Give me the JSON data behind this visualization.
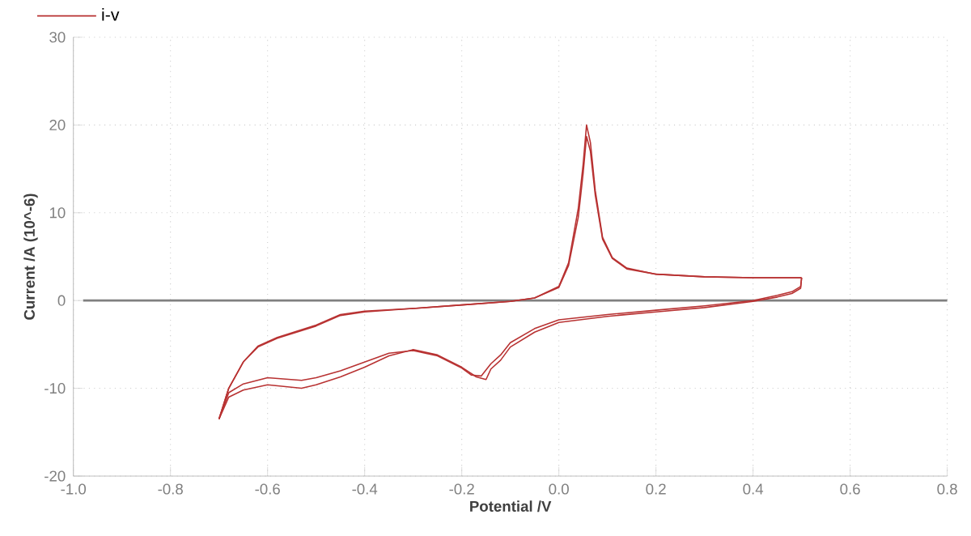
{
  "chart_data": {
    "type": "line",
    "xlabel": "Potential /V",
    "ylabel": "Current /A (10^-6)",
    "xlim": [
      -1.0,
      0.8
    ],
    "ylim": [
      -20,
      30
    ],
    "xticks": [
      {
        "value": -1.0,
        "label": "-1.0"
      },
      {
        "value": -0.8,
        "label": "-0.8"
      },
      {
        "value": -0.6,
        "label": "-0.6"
      },
      {
        "value": -0.4,
        "label": "-0.4"
      },
      {
        "value": -0.2,
        "label": "-0.2"
      },
      {
        "value": 0.0,
        "label": "0.0"
      },
      {
        "value": 0.2,
        "label": "0.2"
      },
      {
        "value": 0.4,
        "label": "0.4"
      },
      {
        "value": 0.6,
        "label": "0.6"
      },
      {
        "value": 0.8,
        "label": "0.8"
      }
    ],
    "yticks": [
      -20,
      -10,
      0,
      10,
      20,
      30
    ],
    "grid": true,
    "legend": "top left",
    "marker": "none",
    "line_style": "solid",
    "ref_lines": [
      {
        "axis": "y",
        "value": 0,
        "color": "#808080"
      }
    ],
    "series": [
      {
        "name": "i-v",
        "color": "#b83232",
        "x": [
          -0.7,
          -0.68,
          -0.65,
          -0.62,
          -0.58,
          -0.5,
          -0.45,
          -0.4,
          -0.3,
          -0.2,
          -0.1,
          -0.05,
          0.0,
          0.02,
          0.04,
          0.05,
          0.057,
          0.065,
          0.075,
          0.09,
          0.11,
          0.14,
          0.2,
          0.3,
          0.4,
          0.5
        ],
        "values": [
          -13.5,
          -10.0,
          -7.0,
          -5.3,
          -4.3,
          -2.9,
          -1.7,
          -1.3,
          -0.9,
          -0.5,
          -0.1,
          0.3,
          1.5,
          4.0,
          9.5,
          14.5,
          18.7,
          17.0,
          12.0,
          7.0,
          4.8,
          3.6,
          3.0,
          2.7,
          2.6,
          2.6
        ]
      },
      {
        "color": "#b83232",
        "x": [
          0.5,
          0.498,
          0.48,
          0.45,
          0.4,
          0.3,
          0.2,
          0.1,
          0.0,
          -0.05,
          -0.1,
          -0.12,
          -0.14,
          -0.16,
          -0.18,
          -0.2,
          -0.25,
          -0.3,
          -0.35,
          -0.4,
          -0.45,
          -0.5,
          -0.53,
          -0.6,
          -0.65,
          -0.68,
          -0.7
        ],
        "values": [
          2.6,
          1.6,
          1.0,
          0.6,
          0.0,
          -0.6,
          -1.1,
          -1.6,
          -2.2,
          -3.2,
          -4.8,
          -6.2,
          -7.2,
          -8.6,
          -8.5,
          -7.7,
          -6.3,
          -5.7,
          -6.0,
          -7.0,
          -8.0,
          -8.8,
          -9.1,
          -8.8,
          -9.5,
          -10.5,
          -13.5
        ]
      },
      {
        "color": "#b83232",
        "x": [
          -0.7,
          -0.68,
          -0.65,
          -0.62,
          -0.58,
          -0.5,
          -0.45,
          -0.4,
          -0.3,
          -0.2,
          -0.1,
          -0.05,
          0.0,
          0.02,
          0.04,
          0.05,
          0.057,
          0.065,
          0.075,
          0.09,
          0.11,
          0.14,
          0.2,
          0.3,
          0.4,
          0.5
        ],
        "values": [
          -13.5,
          -10.0,
          -7.0,
          -5.2,
          -4.2,
          -2.8,
          -1.6,
          -1.2,
          -0.9,
          -0.5,
          -0.1,
          0.3,
          1.6,
          4.3,
          10.5,
          15.5,
          20.0,
          18.0,
          12.5,
          7.2,
          4.9,
          3.7,
          3.0,
          2.7,
          2.6,
          2.6
        ]
      },
      {
        "color": "#b83232",
        "x": [
          0.5,
          0.498,
          0.48,
          0.45,
          0.4,
          0.3,
          0.2,
          0.1,
          0.0,
          -0.05,
          -0.1,
          -0.12,
          -0.14,
          -0.15,
          -0.17,
          -0.2,
          -0.25,
          -0.3,
          -0.35,
          -0.4,
          -0.45,
          -0.5,
          -0.53,
          -0.6,
          -0.65,
          -0.68,
          -0.7
        ],
        "values": [
          2.6,
          1.4,
          0.8,
          0.4,
          -0.1,
          -0.8,
          -1.3,
          -1.8,
          -2.5,
          -3.6,
          -5.3,
          -6.8,
          -7.8,
          -9.0,
          -8.7,
          -7.6,
          -6.2,
          -5.6,
          -6.3,
          -7.6,
          -8.7,
          -9.6,
          -10.0,
          -9.6,
          -10.2,
          -11.0,
          -13.5
        ]
      }
    ]
  }
}
